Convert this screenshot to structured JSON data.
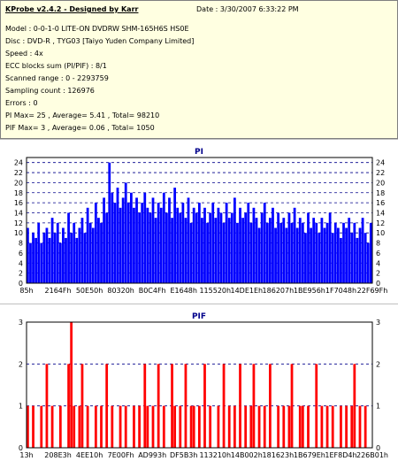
{
  "info": {
    "app_title": "KProbe v2.4.2 - Designed by Karr",
    "date": "Date : 3/30/2007 6:33:22 PM",
    "lines": [
      "Model : 0-0-1-0 LITE-ON DVDRW SHM-165H6S HS0E",
      "Disc : DVD-R , TYG03 [Taiyo Yuden Company Limited]",
      "Speed : 4x",
      "ECC blocks sum (PI/PIF) : 8/1",
      "Scanned range : 0 - 2293759",
      "Sampling count : 126976",
      "Errors : 0",
      "PI Max= 25 , Average= 5.41 , Total= 98210",
      "PIF Max= 3 , Average= 0.06 , Total= 1050"
    ]
  },
  "colors": {
    "pi_bar": "#0000ff",
    "pif_bar": "#ff0000",
    "grid": "#00008b",
    "plot_border": "#000000",
    "info_bg": "#ffffe1"
  },
  "chart_data": [
    {
      "type": "bar",
      "title": "PI",
      "ylim": [
        0,
        25
      ],
      "yticks": [
        0,
        2,
        4,
        6,
        8,
        10,
        12,
        14,
        16,
        18,
        20,
        22,
        24
      ],
      "xtick_labels": [
        "85h",
        "2164Fh",
        "50E50h",
        "80320h",
        "B0C4Fh",
        "E1648h",
        "115520h",
        "14DE1Eh",
        "186207h",
        "1BE956h",
        "1F7048h",
        "22F69Fh"
      ],
      "grid": true,
      "series": [
        {
          "values": [
            11,
            8,
            10,
            9,
            12,
            8,
            10,
            11,
            9,
            13,
            10,
            12,
            8,
            11,
            9,
            14,
            10,
            12,
            9,
            11,
            13,
            10,
            15,
            12,
            11,
            16,
            13,
            12,
            17,
            14,
            24,
            18,
            16,
            19,
            15,
            17,
            20,
            16,
            18,
            15,
            17,
            14,
            16,
            18,
            15,
            14,
            17,
            13,
            16,
            15,
            18,
            14,
            17,
            13,
            19,
            15,
            14,
            16,
            13,
            17,
            12,
            15,
            14,
            16,
            13,
            15,
            12,
            14,
            16,
            13,
            15,
            14,
            12,
            16,
            13,
            14,
            17,
            12,
            15,
            13,
            14,
            16,
            12,
            15,
            13,
            11,
            14,
            16,
            12,
            13,
            15,
            11,
            14,
            12,
            13,
            11,
            14,
            12,
            15,
            11,
            13,
            12,
            10,
            14,
            11,
            13,
            12,
            10,
            13,
            11,
            12,
            14,
            10,
            12,
            11,
            9,
            12,
            11,
            13,
            10,
            12,
            9,
            11,
            13,
            10,
            8,
            12
          ]
        }
      ]
    },
    {
      "type": "bar",
      "title": "PIF",
      "ylim": [
        0,
        3
      ],
      "yticks": [
        0,
        1,
        2,
        3
      ],
      "xtick_labels": [
        "13h",
        "208E3h",
        "4EE10h",
        "7E00Fh",
        "AD993h",
        "DF5B3h",
        "113210h",
        "14B002h",
        "181623h",
        "1B679Eh",
        "1EF8D4h",
        "226B01h"
      ],
      "grid": true,
      "series": [
        {
          "values": [
            1,
            0,
            1,
            0,
            0,
            1,
            0,
            2,
            0,
            1,
            0,
            0,
            1,
            0,
            0,
            2,
            3,
            1,
            0,
            1,
            2,
            0,
            1,
            0,
            0,
            1,
            0,
            1,
            0,
            2,
            0,
            1,
            0,
            0,
            1,
            0,
            1,
            0,
            0,
            1,
            0,
            1,
            0,
            2,
            1,
            0,
            1,
            0,
            2,
            0,
            1,
            0,
            0,
            2,
            1,
            0,
            1,
            0,
            2,
            0,
            1,
            1,
            0,
            1,
            0,
            2,
            0,
            1,
            0,
            0,
            1,
            0,
            2,
            0,
            1,
            0,
            1,
            0,
            2,
            0,
            1,
            0,
            1,
            2,
            0,
            1,
            0,
            1,
            0,
            2,
            0,
            0,
            1,
            0,
            1,
            0,
            1,
            2,
            0,
            0,
            1,
            1,
            0,
            1,
            0,
            0,
            2,
            0,
            1,
            0,
            1,
            0,
            1,
            0,
            0,
            1,
            0,
            1,
            0,
            1,
            2,
            0,
            1,
            0,
            1,
            0,
            0
          ]
        }
      ]
    }
  ]
}
